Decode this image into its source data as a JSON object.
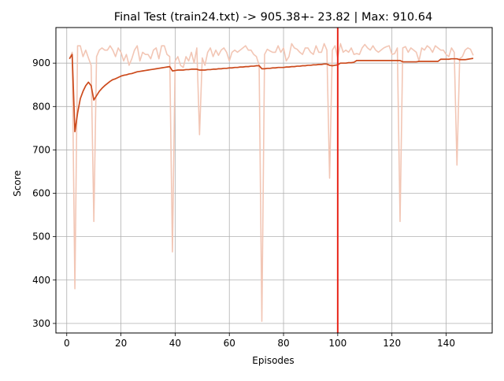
{
  "chart_data": {
    "type": "line",
    "title": "Final Test (train24.txt) -> 905.38+- 23.82 | Max: 910.64",
    "xlabel": "Episodes",
    "ylabel": "Score",
    "xlim": [
      -4,
      157
    ],
    "ylim": [
      278,
      982
    ],
    "xticks": [
      0,
      20,
      40,
      60,
      80,
      100,
      120,
      140
    ],
    "yticks": [
      300,
      400,
      500,
      600,
      700,
      800,
      900
    ],
    "grid": true,
    "vline": {
      "x": 100,
      "color": "#e8261a"
    },
    "series": [
      {
        "role": "raw",
        "color": "#f2c6b5",
        "x": [
          1,
          2,
          3,
          4,
          5,
          6,
          7,
          8,
          9,
          10,
          11,
          12,
          13,
          14,
          15,
          16,
          17,
          18,
          19,
          20,
          21,
          22,
          23,
          24,
          25,
          26,
          27,
          28,
          29,
          30,
          31,
          32,
          33,
          34,
          35,
          36,
          37,
          38,
          39,
          40,
          41,
          42,
          43,
          44,
          45,
          46,
          47,
          48,
          49,
          50,
          51,
          52,
          53,
          54,
          55,
          56,
          57,
          58,
          59,
          60,
          61,
          62,
          63,
          64,
          65,
          66,
          67,
          68,
          69,
          70,
          71,
          72,
          73,
          74,
          75,
          76,
          77,
          78,
          79,
          80,
          81,
          82,
          83,
          84,
          85,
          86,
          87,
          88,
          89,
          90,
          91,
          92,
          93,
          94,
          95,
          96,
          97,
          98,
          99,
          100,
          101,
          102,
          103,
          104,
          105,
          106,
          107,
          108,
          109,
          110,
          111,
          112,
          113,
          114,
          115,
          116,
          117,
          118,
          119,
          120,
          121,
          122,
          123,
          124,
          125,
          126,
          127,
          128,
          129,
          130,
          131,
          132,
          133,
          134,
          135,
          136,
          137,
          138,
          139,
          140,
          141,
          142,
          143,
          144,
          145,
          146,
          147,
          148,
          149,
          150
        ],
        "values": [
          910,
          925,
          380,
          940,
          940,
          915,
          930,
          912,
          895,
          535,
          915,
          930,
          935,
          930,
          930,
          940,
          930,
          915,
          935,
          925,
          905,
          920,
          895,
          910,
          930,
          940,
          905,
          925,
          920,
          920,
          910,
          930,
          935,
          910,
          940,
          940,
          920,
          915,
          465,
          905,
          915,
          895,
          890,
          915,
          905,
          925,
          900,
          935,
          735,
          912,
          895,
          925,
          935,
          915,
          930,
          918,
          930,
          935,
          925,
          905,
          925,
          930,
          925,
          930,
          935,
          940,
          930,
          930,
          920,
          915,
          895,
          305,
          920,
          932,
          928,
          925,
          925,
          940,
          925,
          935,
          905,
          915,
          945,
          935,
          932,
          925,
          920,
          935,
          935,
          925,
          920,
          940,
          925,
          925,
          945,
          930,
          635,
          930,
          940,
          912,
          945,
          925,
          930,
          925,
          935,
          920,
          922,
          920,
          935,
          943,
          935,
          930,
          940,
          930,
          925,
          930,
          935,
          938,
          940,
          920,
          922,
          935,
          535,
          935,
          938,
          925,
          935,
          930,
          925,
          905,
          935,
          930,
          940,
          935,
          925,
          940,
          935,
          930,
          930,
          920,
          915,
          935,
          925,
          665,
          910,
          915,
          930,
          935,
          932,
          918
        ]
      },
      {
        "role": "moving-average",
        "color": "#cc4a1c",
        "x": [
          1,
          2,
          3,
          4,
          5,
          6,
          7,
          8,
          9,
          10,
          11,
          12,
          13,
          14,
          15,
          16,
          17,
          18,
          19,
          20,
          21,
          22,
          23,
          24,
          25,
          26,
          27,
          28,
          29,
          30,
          31,
          32,
          33,
          34,
          35,
          36,
          37,
          38,
          39,
          40,
          41,
          42,
          43,
          44,
          45,
          46,
          47,
          48,
          49,
          50,
          51,
          52,
          53,
          54,
          55,
          56,
          57,
          58,
          59,
          60,
          61,
          62,
          63,
          64,
          65,
          66,
          67,
          68,
          69,
          70,
          71,
          72,
          73,
          74,
          75,
          76,
          77,
          78,
          79,
          80,
          81,
          82,
          83,
          84,
          85,
          86,
          87,
          88,
          89,
          90,
          91,
          92,
          93,
          94,
          95,
          96,
          97,
          98,
          99,
          100,
          101,
          102,
          103,
          104,
          105,
          106,
          107,
          108,
          109,
          110,
          111,
          112,
          113,
          114,
          115,
          116,
          117,
          118,
          119,
          120,
          121,
          122,
          123,
          124,
          125,
          126,
          127,
          128,
          129,
          130,
          131,
          132,
          133,
          134,
          135,
          136,
          137,
          138,
          139,
          140,
          141,
          142,
          143,
          144,
          145,
          146,
          147,
          148,
          149,
          150
        ],
        "values": [
          910,
          920,
          742,
          785,
          818,
          835,
          848,
          856,
          848,
          815,
          825,
          835,
          842,
          848,
          853,
          858,
          862,
          864,
          867,
          870,
          872,
          873,
          875,
          876,
          878,
          880,
          881,
          882,
          883,
          884,
          885,
          886,
          887,
          888,
          889,
          890,
          891,
          892,
          882,
          883,
          884,
          884,
          884,
          885,
          885,
          886,
          886,
          886,
          884,
          884,
          884,
          885,
          885,
          886,
          886,
          887,
          887,
          888,
          888,
          889,
          889,
          890,
          890,
          891,
          891,
          892,
          892,
          893,
          893,
          894,
          894,
          887,
          887,
          888,
          888,
          889,
          889,
          890,
          890,
          890,
          891,
          891,
          892,
          892,
          893,
          893,
          894,
          894,
          895,
          895,
          896,
          896,
          897,
          897,
          898,
          898,
          895,
          894,
          895,
          896,
          900,
          900,
          900,
          901,
          901,
          902,
          906,
          906,
          906,
          906,
          906,
          906,
          906,
          906,
          906,
          906,
          906,
          906,
          906,
          906,
          906,
          906,
          906,
          903,
          903,
          903,
          903,
          903,
          903,
          904,
          904,
          904,
          904,
          904,
          904,
          904,
          904,
          909,
          909,
          909,
          909,
          910,
          910,
          910,
          908,
          908,
          908,
          909,
          910,
          911
        ]
      }
    ]
  }
}
